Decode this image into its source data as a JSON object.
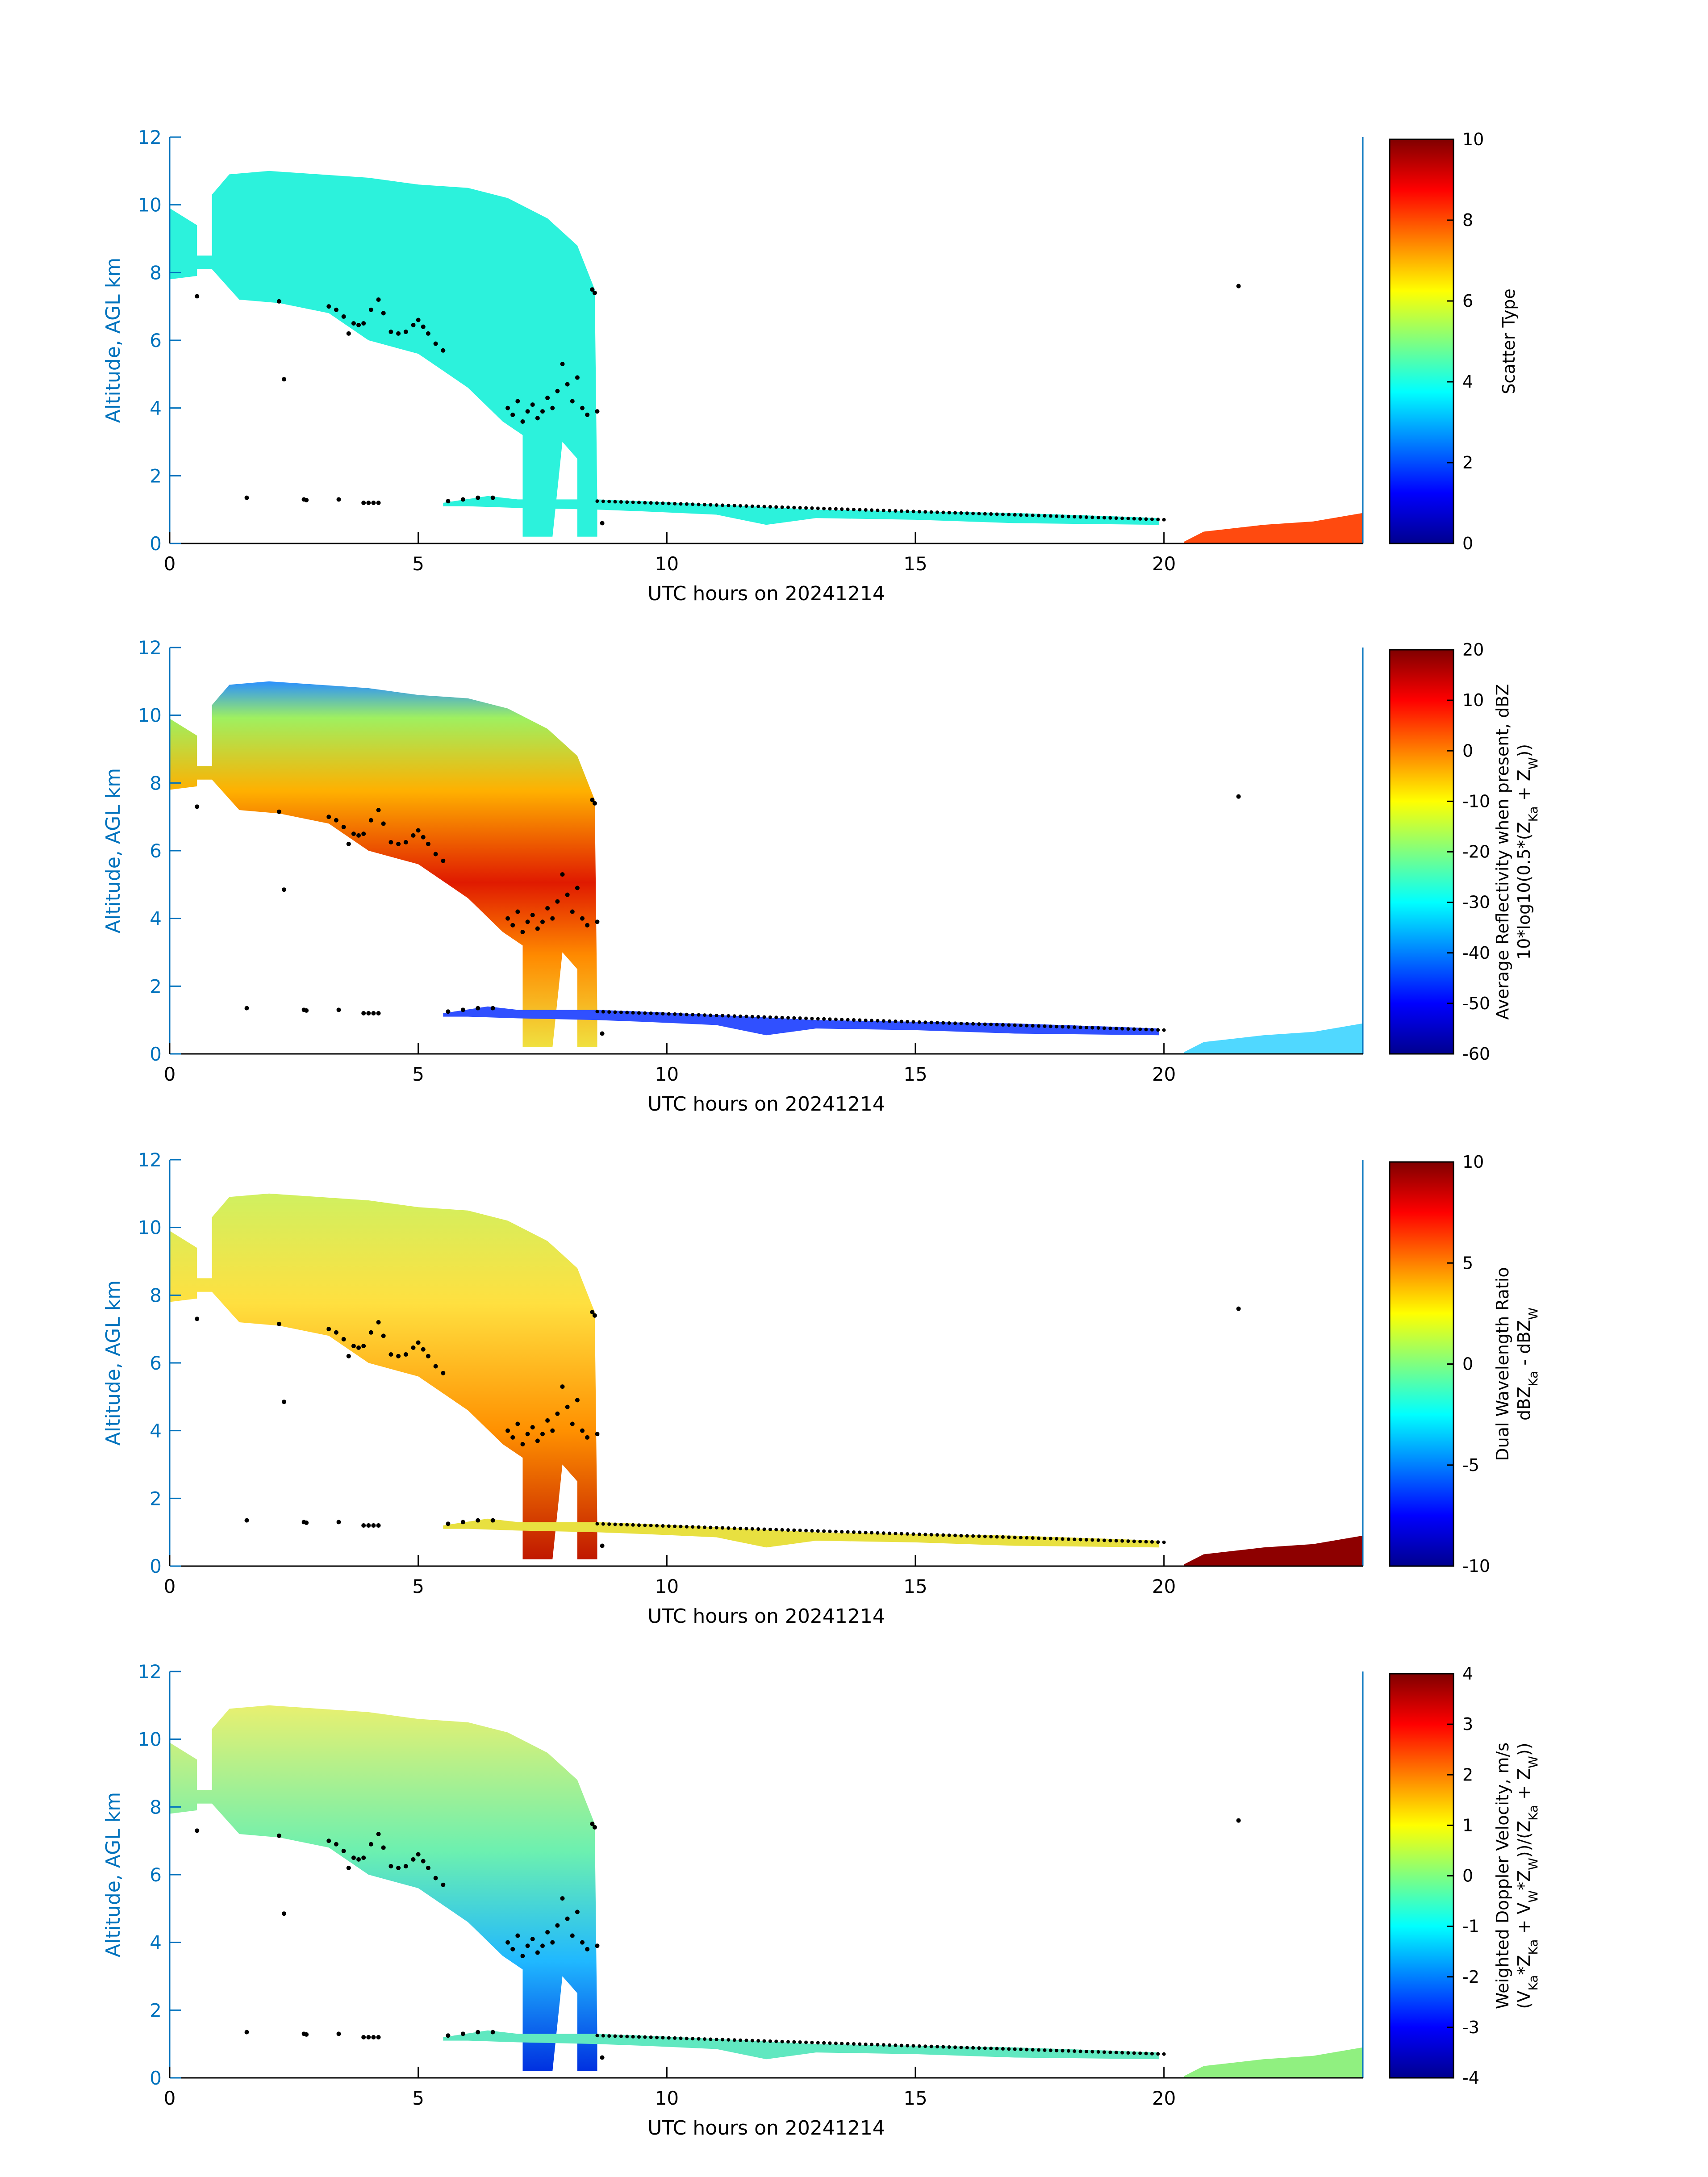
{
  "figure": {
    "date": "20241214",
    "colors": {
      "axis_blue": "#0072bd",
      "black": "#000000",
      "scatter_type_fill": "#2cf2dc",
      "precip_orange": "#ff4a0f",
      "dwr_dark_red": "#8e0000"
    }
  },
  "chart_data": [
    {
      "type": "heatmap",
      "panel": "scatter-type",
      "xlabel": "UTC hours on 20241214",
      "ylabel": "Altitude, AGL km",
      "xlim": [
        0,
        24
      ],
      "ylim": [
        0,
        12
      ],
      "xticks": [
        "0",
        "5",
        "10",
        "15",
        "20"
      ],
      "yticks": [
        "0",
        "2",
        "4",
        "6",
        "8",
        "10",
        "12"
      ],
      "colorbar": {
        "label_lines": [
          "Scatter Type"
        ],
        "range": [
          0,
          10
        ],
        "ticks": [
          "0",
          "2",
          "4",
          "6",
          "8",
          "10"
        ]
      }
    },
    {
      "type": "heatmap",
      "panel": "reflectivity",
      "xlabel": "UTC hours on 20241214",
      "ylabel": "Altitude, AGL km",
      "xlim": [
        0,
        24
      ],
      "ylim": [
        0,
        12
      ],
      "xticks": [
        "0",
        "5",
        "10",
        "15",
        "20"
      ],
      "yticks": [
        "0",
        "2",
        "4",
        "6",
        "8",
        "10",
        "12"
      ],
      "colorbar": {
        "label_lines": [
          "Average Reflectivity when present, dBZ",
          "10*log10(0.5*(Z_Ka + Z_W))"
        ],
        "range": [
          -60,
          20
        ],
        "ticks": [
          "-60",
          "-50",
          "-40",
          "-30",
          "-20",
          "-10",
          "0",
          "10",
          "20"
        ]
      }
    },
    {
      "type": "heatmap",
      "panel": "dual-wavelength-ratio",
      "xlabel": "UTC hours on 20241214",
      "ylabel": "Altitude, AGL km",
      "xlim": [
        0,
        24
      ],
      "ylim": [
        0,
        12
      ],
      "xticks": [
        "0",
        "5",
        "10",
        "15",
        "20"
      ],
      "yticks": [
        "0",
        "2",
        "4",
        "6",
        "8",
        "10",
        "12"
      ],
      "colorbar": {
        "label_lines": [
          "Dual Wavelength Ratio",
          "dBZ_Ka - dBZ_W"
        ],
        "range": [
          -10,
          10
        ],
        "ticks": [
          "-10",
          "-5",
          "0",
          "5",
          "10"
        ]
      }
    },
    {
      "type": "heatmap",
      "panel": "doppler-velocity",
      "xlabel": "UTC hours on 20241214",
      "ylabel": "Altitude, AGL km",
      "xlim": [
        0,
        24
      ],
      "ylim": [
        0,
        12
      ],
      "xticks": [
        "0",
        "5",
        "10",
        "15",
        "20"
      ],
      "yticks": [
        "0",
        "2",
        "4",
        "6",
        "8",
        "10",
        "12"
      ],
      "colorbar": {
        "label_lines": [
          "Weighted Doppler Velocity, m/s",
          "(V_Ka*Z_Ka + V_W*Z_W))/(Z_Ka + Z_W))"
        ],
        "range": [
          -4,
          4
        ],
        "ticks": [
          "-4",
          "-3",
          "-2",
          "-1",
          "0",
          "1",
          "2",
          "3",
          "4"
        ]
      }
    }
  ],
  "cloud_base_points": [
    [
      0.55,
      7.3
    ],
    [
      1.55,
      1.35
    ],
    [
      2.2,
      7.15
    ],
    [
      2.3,
      4.85
    ],
    [
      2.7,
      1.3
    ],
    [
      2.75,
      1.28
    ],
    [
      3.4,
      1.3
    ],
    [
      3.9,
      1.2
    ],
    [
      4.0,
      1.2
    ],
    [
      4.1,
      1.2
    ],
    [
      4.2,
      1.2
    ],
    [
      3.2,
      7.0
    ],
    [
      3.35,
      6.9
    ],
    [
      3.5,
      6.7
    ],
    [
      3.6,
      6.2
    ],
    [
      3.7,
      6.5
    ],
    [
      3.8,
      6.45
    ],
    [
      3.9,
      6.5
    ],
    [
      4.05,
      6.9
    ],
    [
      4.2,
      7.2
    ],
    [
      4.3,
      6.8
    ],
    [
      4.45,
      6.25
    ],
    [
      4.6,
      6.2
    ],
    [
      4.75,
      6.25
    ],
    [
      4.9,
      6.45
    ],
    [
      5.0,
      6.6
    ],
    [
      5.1,
      6.4
    ],
    [
      5.2,
      6.2
    ],
    [
      5.35,
      5.9
    ],
    [
      5.5,
      5.7
    ],
    [
      5.6,
      1.25
    ],
    [
      5.9,
      1.3
    ],
    [
      6.2,
      1.35
    ],
    [
      6.5,
      1.35
    ],
    [
      6.8,
      4.0
    ],
    [
      6.9,
      3.8
    ],
    [
      7.0,
      4.2
    ],
    [
      7.1,
      3.6
    ],
    [
      7.2,
      3.9
    ],
    [
      7.3,
      4.1
    ],
    [
      7.4,
      3.7
    ],
    [
      7.5,
      3.9
    ],
    [
      7.6,
      4.3
    ],
    [
      7.7,
      4.0
    ],
    [
      7.8,
      4.5
    ],
    [
      7.9,
      5.3
    ],
    [
      8.0,
      4.7
    ],
    [
      8.1,
      4.2
    ],
    [
      8.2,
      4.9
    ],
    [
      8.3,
      4.0
    ],
    [
      8.4,
      3.8
    ],
    [
      8.5,
      7.5
    ],
    [
      8.55,
      7.4
    ],
    [
      8.6,
      3.9
    ],
    [
      8.7,
      0.6
    ],
    [
      21.5,
      7.6
    ]
  ]
}
